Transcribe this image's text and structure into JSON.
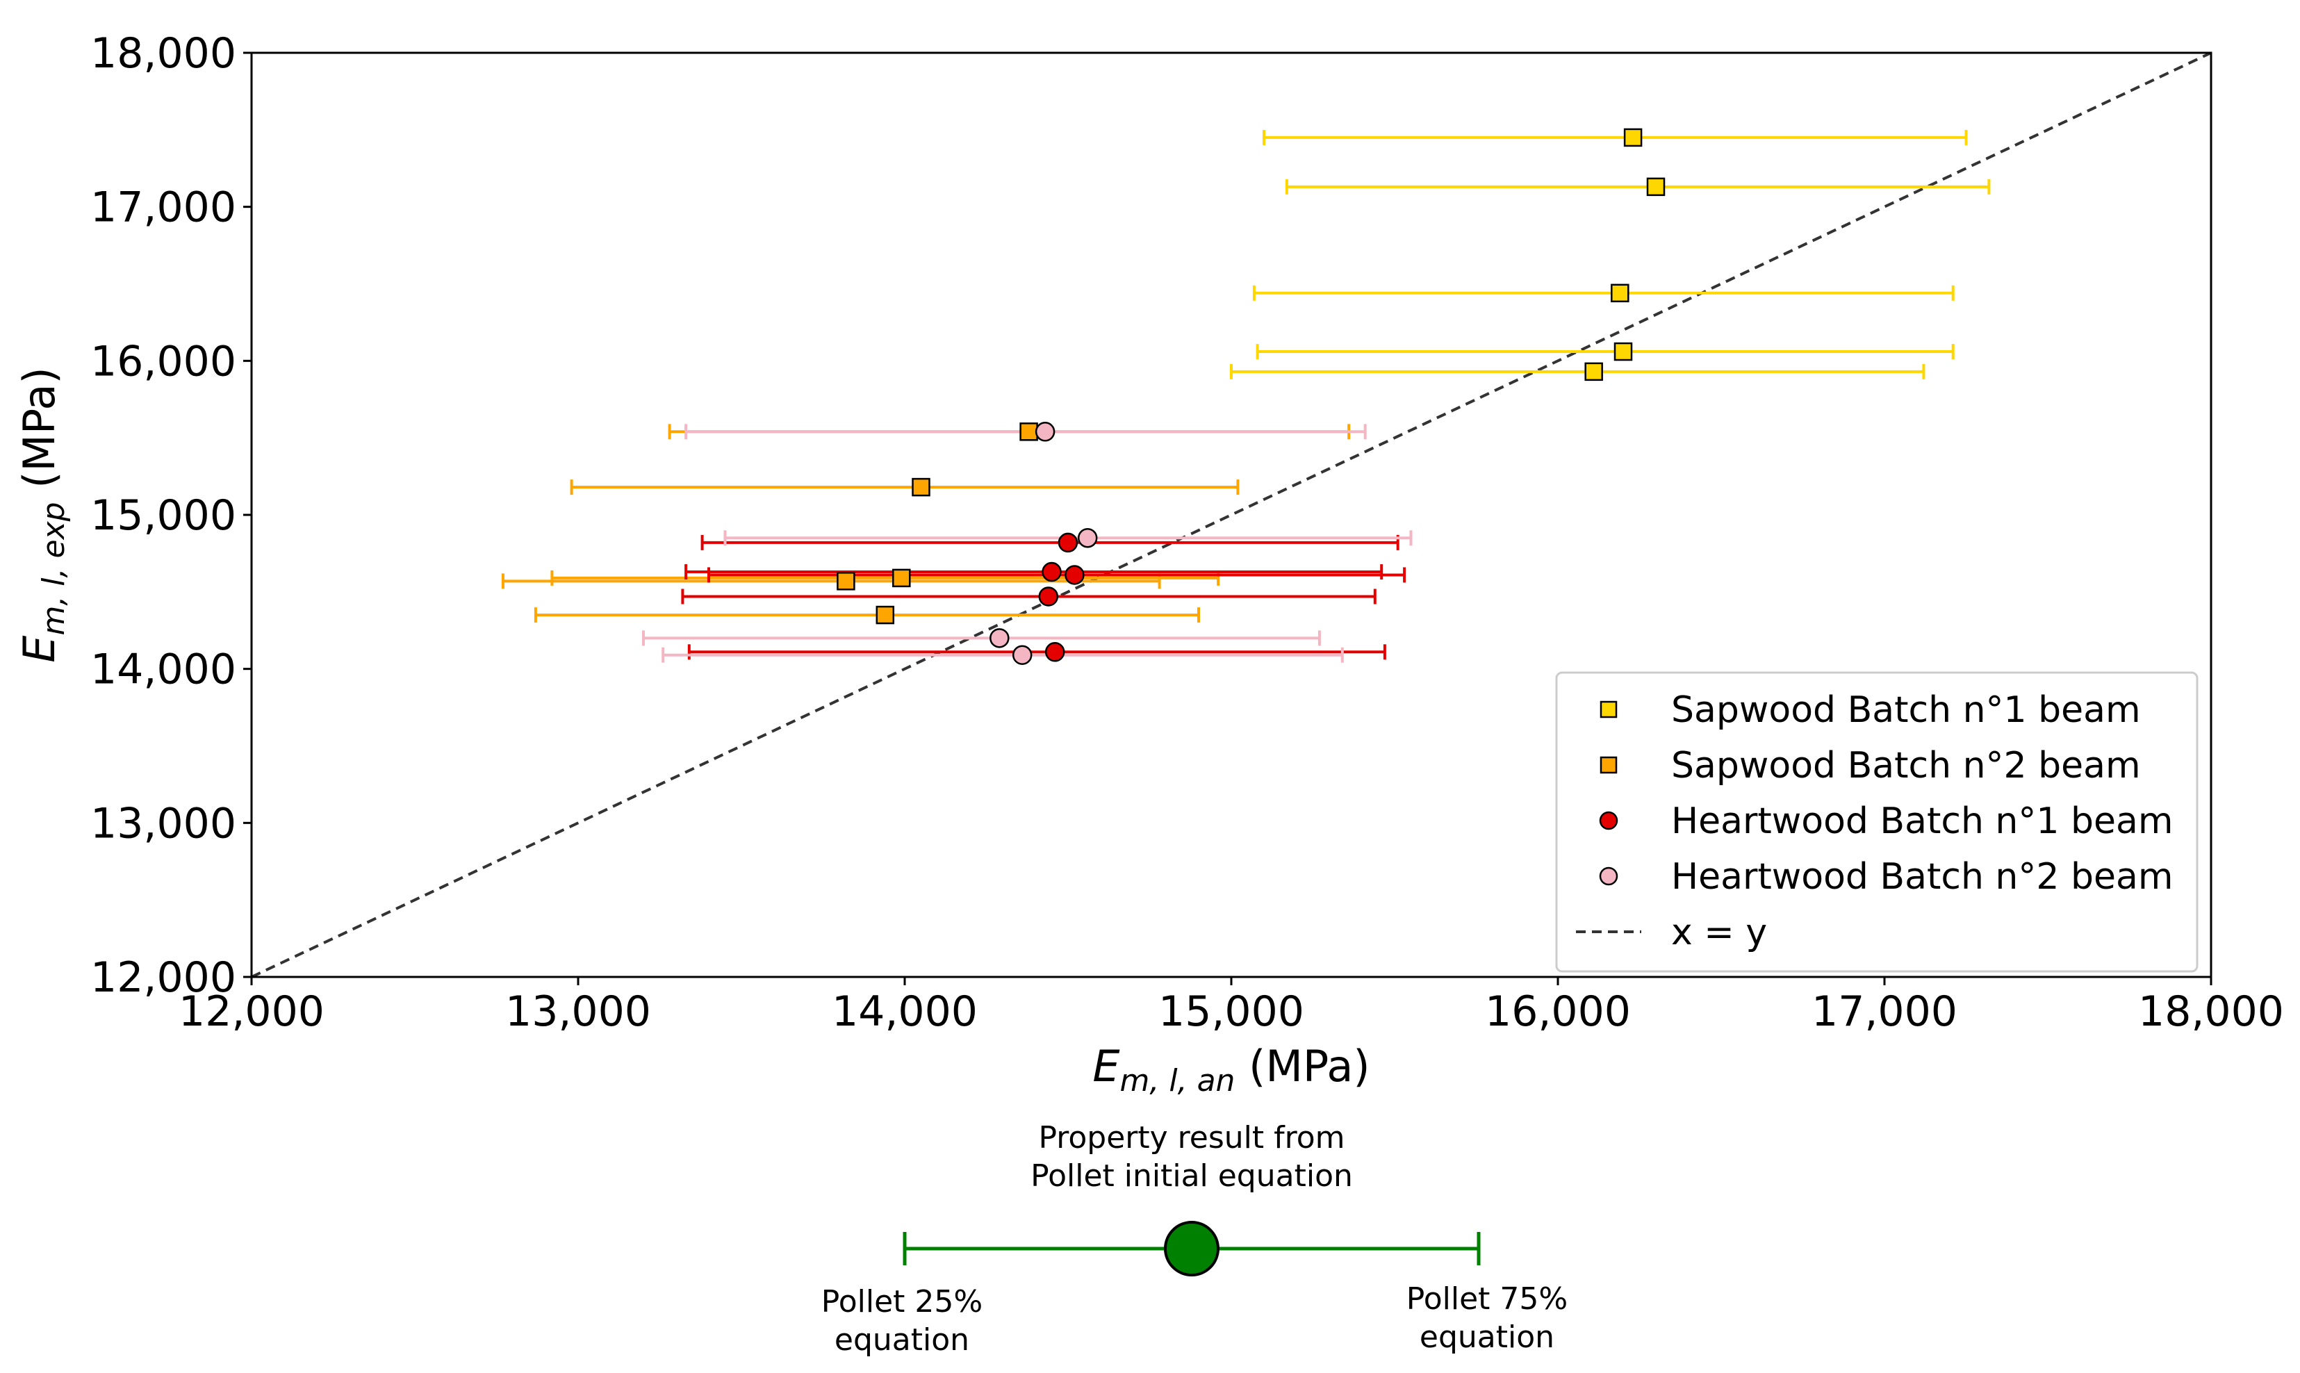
{
  "chart_data": {
    "type": "scatter",
    "title": "",
    "xlabel": {
      "main": "E",
      "sub": "m, l, an",
      "unit": "(MPa)"
    },
    "ylabel": {
      "main": "E",
      "sub": "m, l, exp",
      "unit": "(MPa)"
    },
    "xlim": [
      12000,
      18000
    ],
    "ylim": [
      12000,
      18000
    ],
    "x_ticks": [
      12000,
      13000,
      14000,
      15000,
      16000,
      17000,
      18000
    ],
    "y_ticks": [
      12000,
      13000,
      14000,
      15000,
      16000,
      17000,
      18000
    ],
    "x_tick_labels": [
      "12,000",
      "13,000",
      "14,000",
      "15,000",
      "16,000",
      "17,000",
      "18,000"
    ],
    "y_tick_labels": [
      "12,000",
      "13,000",
      "14,000",
      "15,000",
      "16,000",
      "17,000",
      "18,000"
    ],
    "grid": false,
    "legend_position": "lower-right",
    "series": [
      {
        "name": "Sapwood Batch n°1 beam",
        "marker": "square",
        "color": "#FFD700",
        "errcolor": "#FFD700",
        "points": [
          {
            "x": 16230,
            "y": 17450,
            "xmin": 15100,
            "xmax": 17250
          },
          {
            "x": 16300,
            "y": 17130,
            "xmin": 15170,
            "xmax": 17320
          },
          {
            "x": 16190,
            "y": 16440,
            "xmin": 15070,
            "xmax": 17210
          },
          {
            "x": 16200,
            "y": 16060,
            "xmin": 15080,
            "xmax": 17210
          },
          {
            "x": 16110,
            "y": 15930,
            "xmin": 15000,
            "xmax": 17120
          }
        ]
      },
      {
        "name": "Sapwood Batch n°2 beam",
        "marker": "square",
        "color": "#FFA500",
        "errcolor": "#FFA500",
        "points": [
          {
            "x": 14380,
            "y": 15540,
            "xmin": 13280,
            "xmax": 15360
          },
          {
            "x": 14050,
            "y": 15180,
            "xmin": 12980,
            "xmax": 15020
          },
          {
            "x": 13990,
            "y": 14590,
            "xmin": 12920,
            "xmax": 14960
          },
          {
            "x": 13820,
            "y": 14570,
            "xmin": 12770,
            "xmax": 14780
          },
          {
            "x": 13940,
            "y": 14350,
            "xmin": 12870,
            "xmax": 14900
          }
        ]
      },
      {
        "name": "Heartwood Batch n°1 beam",
        "marker": "circle",
        "color": "#E50000",
        "errcolor": "#E50000",
        "points": [
          {
            "x": 14500,
            "y": 14820,
            "xmin": 13380,
            "xmax": 15510
          },
          {
            "x": 14450,
            "y": 14630,
            "xmin": 13330,
            "xmax": 15460
          },
          {
            "x": 14520,
            "y": 14610,
            "xmin": 13400,
            "xmax": 15530
          },
          {
            "x": 14440,
            "y": 14470,
            "xmin": 13320,
            "xmax": 15440
          },
          {
            "x": 14460,
            "y": 14110,
            "xmin": 13340,
            "xmax": 15470
          }
        ]
      },
      {
        "name": "Heartwood Batch n°2 beam",
        "marker": "circle",
        "color": "#F4B6C2",
        "errcolor": "#F4B6C2",
        "points": [
          {
            "x": 14430,
            "y": 15540,
            "xmin": 13330,
            "xmax": 15410
          },
          {
            "x": 14560,
            "y": 14850,
            "xmin": 13450,
            "xmax": 15550
          },
          {
            "x": 14290,
            "y": 14200,
            "xmin": 13200,
            "xmax": 15270
          },
          {
            "x": 14360,
            "y": 14090,
            "xmin": 13260,
            "xmax": 15340
          }
        ]
      }
    ],
    "reference_line": {
      "name": "x = y",
      "from": [
        12000,
        12000
      ],
      "to": [
        18000,
        18000
      ],
      "style": "dashed",
      "color": "#333333"
    }
  },
  "explanation_key": {
    "center_label": [
      "Property result from",
      "Pollet initial equation"
    ],
    "left_label": [
      "Pollet 25%",
      "equation"
    ],
    "right_label": [
      "Pollet 75%",
      "equation"
    ],
    "color": "#008000"
  }
}
